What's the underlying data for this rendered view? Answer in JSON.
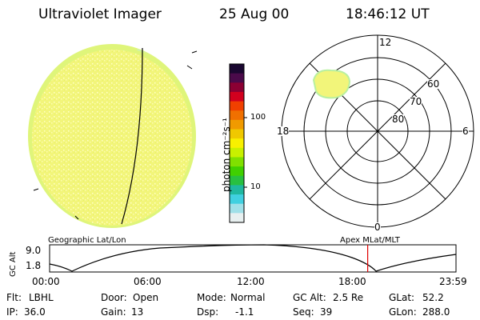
{
  "header": {
    "instrument": "Ultraviolet Imager",
    "date": "25 Aug 00",
    "time": "18:46:12 UT"
  },
  "colorbar": {
    "unit_label": "photon cm⁻²s⁻¹",
    "ticks": [
      "100",
      "10"
    ],
    "colors": [
      "#1a0730",
      "#4a0a4a",
      "#8b0033",
      "#d2001e",
      "#f04000",
      "#f07000",
      "#f09a00",
      "#f0c800",
      "#f8f000",
      "#c8f000",
      "#80e000",
      "#40d000",
      "#28c040",
      "#20b8a0",
      "#40d0e0",
      "#a0e0e8",
      "#e8f0f0"
    ]
  },
  "polar": {
    "mlt_labels": {
      "top": "12",
      "left": "18",
      "right": "6",
      "bottom": "0"
    },
    "lat_labels": [
      "60",
      "70",
      "80"
    ]
  },
  "timeline": {
    "ylabel": "GC Alt",
    "yticks": [
      "9.0",
      "1.8"
    ],
    "left_label": "Geographic Lat/Lon",
    "right_label": "Apex MLat/MLT",
    "xticks": [
      "00:00",
      "06:00",
      "12:00",
      "18:00",
      "23:59"
    ],
    "marker_time_hours": 18.77,
    "marker_color": "#e00000"
  },
  "info": {
    "row1": [
      {
        "label": "Flt:",
        "value": "LBHL"
      },
      {
        "label": "Door:",
        "value": "Open"
      },
      {
        "label": "Mode:",
        "value": "Normal"
      },
      {
        "label": "GC Alt:",
        "value": "2.5 Re"
      },
      {
        "label": "GLat:",
        "value": "52.2"
      }
    ],
    "row2": [
      {
        "label": "IP:",
        "value": "36.0"
      },
      {
        "label": "Gain:",
        "value": "13"
      },
      {
        "label": "Dsp:",
        "value": "-1.1"
      },
      {
        "label": "Seq:",
        "value": "39"
      },
      {
        "label": "GLon:",
        "value": "288.0"
      }
    ]
  }
}
